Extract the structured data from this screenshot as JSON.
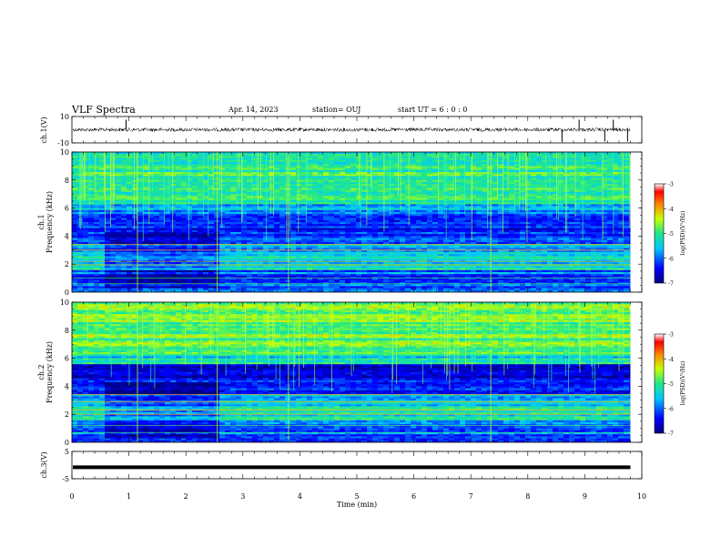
{
  "header": {
    "title": "VLF Spectra",
    "date": "Apr. 14, 2023",
    "station": "station= OUJ",
    "start": "start  UT  =   6  : 0   : 0"
  },
  "chart_data": [
    {
      "type": "line",
      "name": "ch1-waveform",
      "ylabel": "ch.1(V)",
      "ylim": [
        -10,
        10
      ],
      "yticks": [
        "10",
        "-10"
      ],
      "xlim": [
        0,
        10
      ],
      "spikes_min": [
        0.95,
        8.6,
        8.9,
        9.35,
        9.5,
        9.75
      ]
    },
    {
      "type": "heatmap",
      "name": "ch1-spectrogram",
      "ylabel": "ch.1 Frequency (kHz)",
      "ylim": [
        0,
        10
      ],
      "yticks": [
        "0",
        "2",
        "4",
        "6",
        "8",
        "10"
      ],
      "xlim": [
        0,
        10
      ],
      "colorbar": {
        "label": "log(PSD)(V²/Hz)",
        "ticks": [
          "-3",
          "-4",
          "-5",
          "-6",
          "-7"
        ],
        "range": [
          -7,
          -3
        ]
      }
    },
    {
      "type": "heatmap",
      "name": "ch2-spectrogram",
      "ylabel": "ch.2 Frequency (kHz)",
      "ylim": [
        0,
        10
      ],
      "yticks": [
        "0",
        "2",
        "4",
        "6",
        "8",
        "10"
      ],
      "xlim": [
        0,
        10
      ],
      "colorbar": {
        "label": "log(PSD)(V²/Hz)",
        "ticks": [
          "-3",
          "-4",
          "-5",
          "-6",
          "-7"
        ],
        "range": [
          -7,
          -3
        ]
      }
    },
    {
      "type": "line",
      "name": "ch3-waveform",
      "ylabel": "ch.3(V)",
      "ylim": [
        -5,
        5
      ],
      "yticks": [
        "5",
        "-5"
      ],
      "xlim": [
        0,
        10
      ],
      "level": -0.8
    }
  ],
  "xaxis": {
    "label": "Time  (min)",
    "ticks": [
      "0",
      "1",
      "2",
      "3",
      "4",
      "5",
      "6",
      "7",
      "8",
      "9",
      "10"
    ],
    "data_end": 9.8
  }
}
